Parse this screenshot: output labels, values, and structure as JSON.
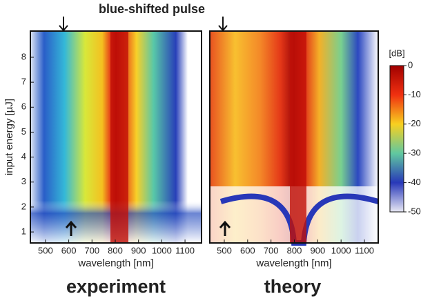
{
  "annotation": "blue-shifted pulse",
  "chart_data": [
    {
      "type": "heatmap",
      "name": "experiment",
      "xlabel": "wavelength [nm]",
      "ylabel": "input energy [µJ]",
      "xlim": [
        435,
        1171
      ],
      "xticks": [
        500,
        600,
        700,
        800,
        900,
        1000,
        1100
      ],
      "ylim": [
        0.56,
        9.05
      ],
      "yticks": [
        1,
        2,
        3,
        4,
        5,
        6,
        7,
        8
      ]
    },
    {
      "type": "heatmap",
      "name": "theory",
      "xlabel": "wavelength [nm]",
      "xlim": [
        438,
        1159
      ],
      "xticks": [
        500,
        600,
        700,
        800,
        900,
        1000,
        1100
      ],
      "ylim": [
        0.56,
        9.05
      ],
      "colorbar": {
        "label": "[dB]",
        "lim": [
          -50,
          0
        ],
        "ticks": [
          0,
          -10,
          -20,
          -30,
          -40,
          -50
        ]
      }
    }
  ]
}
